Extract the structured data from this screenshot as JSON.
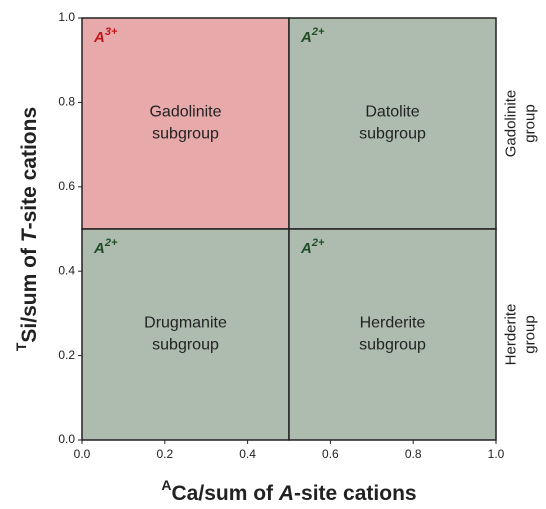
{
  "chart_data": {
    "type": "region",
    "xlabel": [
      "A",
      "Ca/sum of ",
      "A",
      "-site cations"
    ],
    "ylabel": [
      "T",
      "Si/sum of ",
      "T",
      "-site cations"
    ],
    "xlim": [
      0,
      1
    ],
    "ylim": [
      0,
      1
    ],
    "xticks": [
      {
        "value": 0,
        "label": "0.0"
      },
      0.2,
      0.4,
      0.6,
      0.8,
      {
        "value": 1,
        "label": "1.0"
      }
    ],
    "yticks": [
      {
        "value": 0,
        "label": "0.0"
      },
      0.2,
      0.4,
      0.6,
      0.8,
      {
        "value": 1,
        "label": "1.0"
      }
    ],
    "regions": [
      {
        "name": [
          "Gadolinite",
          "subgroup"
        ],
        "x": [
          0,
          0.5
        ],
        "y": [
          0.5,
          1
        ],
        "color": "#e8a9ab",
        "charge": [
          "A",
          "3+"
        ],
        "charge_color": "#c0161d"
      },
      {
        "name": [
          "Datolite",
          "subgroup"
        ],
        "x": [
          0.5,
          1
        ],
        "y": [
          0.5,
          1
        ],
        "color": "#aebcaf",
        "charge": [
          "A",
          "2+"
        ],
        "charge_color": "#1f4d25"
      },
      {
        "name": [
          "Drugmanite",
          "subgroup"
        ],
        "x": [
          0,
          0.5
        ],
        "y": [
          0,
          0.5
        ],
        "color": "#aebcaf",
        "charge": [
          "A",
          "2+"
        ],
        "charge_color": "#1f4d25"
      },
      {
        "name": [
          "Herderite",
          "subgroup"
        ],
        "x": [
          0.5,
          1
        ],
        "y": [
          0,
          0.5
        ],
        "color": "#aebcaf",
        "charge": [
          "A",
          "2+"
        ],
        "charge_color": "#1f4d25"
      }
    ],
    "groups": [
      {
        "name": [
          "Gadolinite",
          "group"
        ],
        "y": [
          0.5,
          1
        ]
      },
      {
        "name": [
          "Herderite",
          "group"
        ],
        "y": [
          0,
          0.5
        ]
      }
    ]
  }
}
